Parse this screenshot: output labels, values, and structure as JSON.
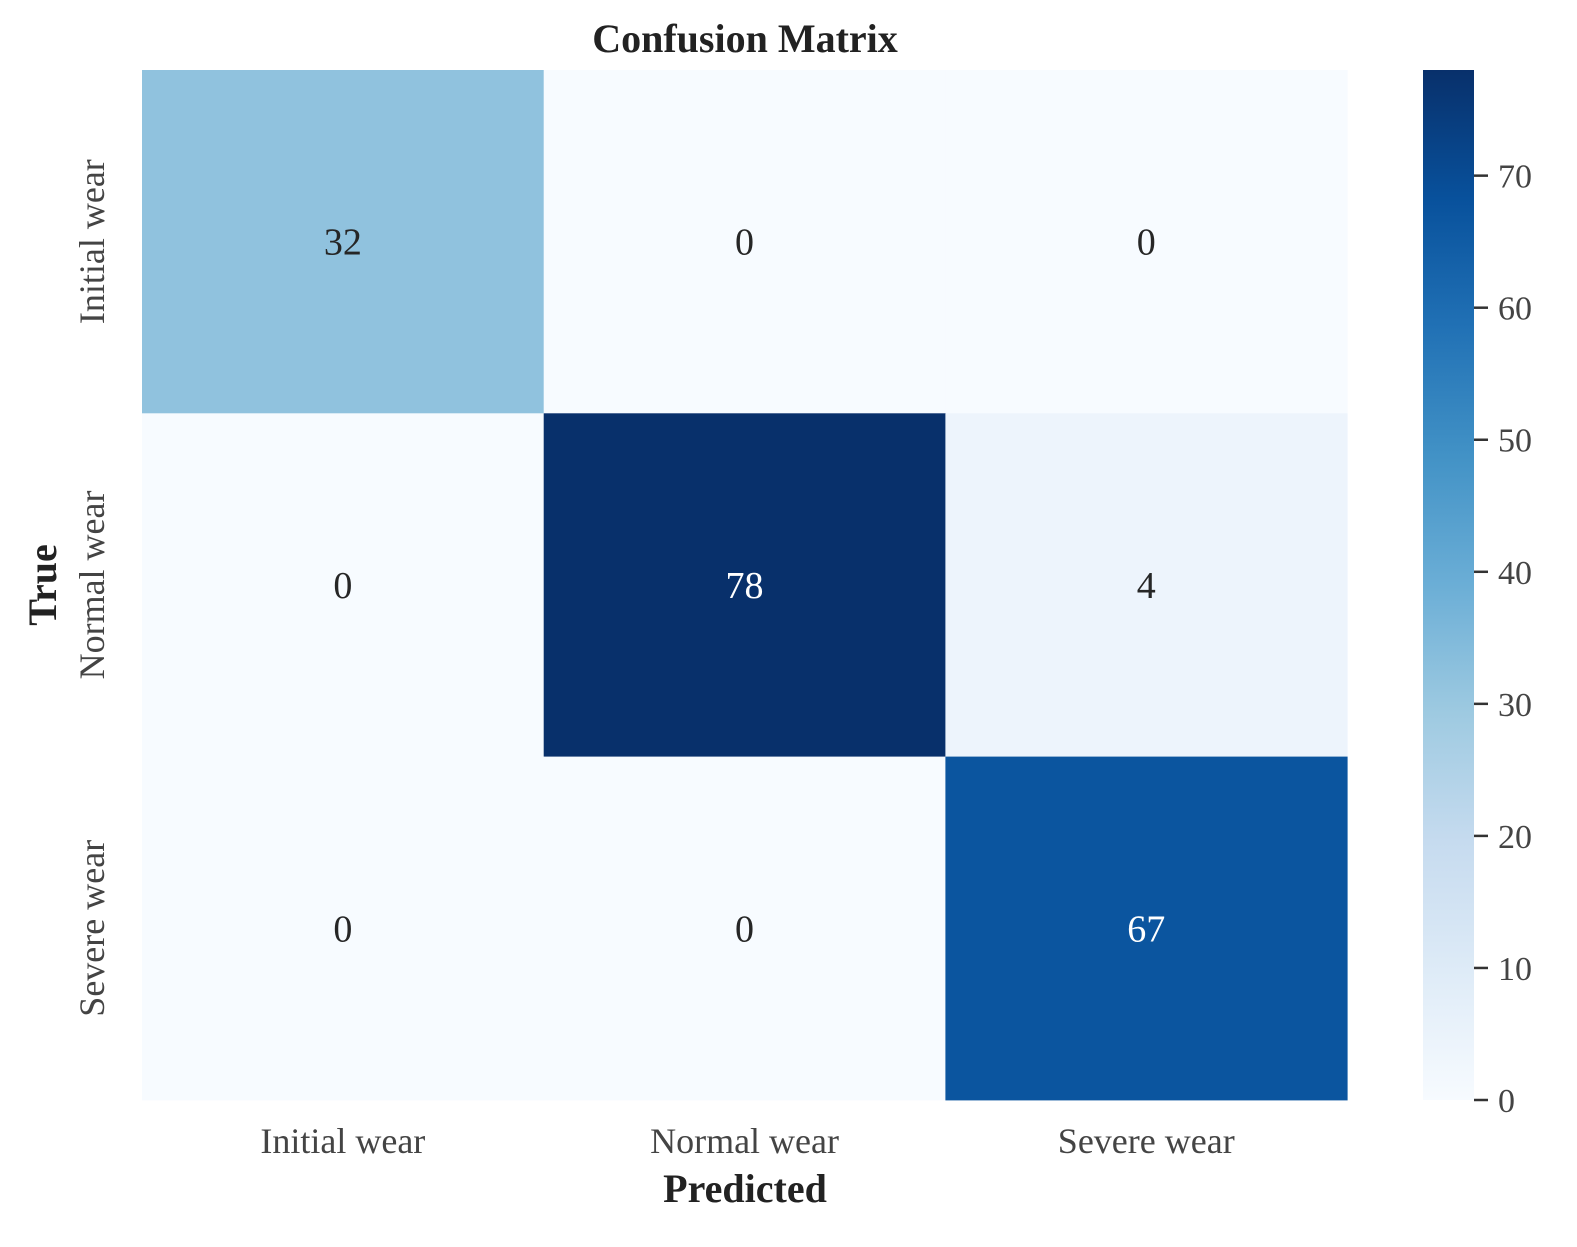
{
  "chart_data": {
    "type": "heatmap",
    "title": "Confusion Matrix",
    "xlabel": "Predicted",
    "ylabel": "True",
    "x_categories": [
      "Initial wear",
      "Normal wear",
      "Severe wear"
    ],
    "y_categories": [
      "Initial wear",
      "Normal wear",
      "Severe wear"
    ],
    "values": [
      [
        32,
        0,
        0
      ],
      [
        0,
        78,
        4
      ],
      [
        0,
        0,
        67
      ]
    ],
    "colormap": "Blues",
    "colorbar": {
      "range": [
        0,
        78
      ],
      "ticks": [
        0,
        10,
        20,
        30,
        40,
        50,
        60,
        70
      ]
    },
    "colors": {
      "min": "#f7fbff",
      "max": "#08306b",
      "text_dark": "#262626",
      "text_light": "#ffffff"
    }
  }
}
